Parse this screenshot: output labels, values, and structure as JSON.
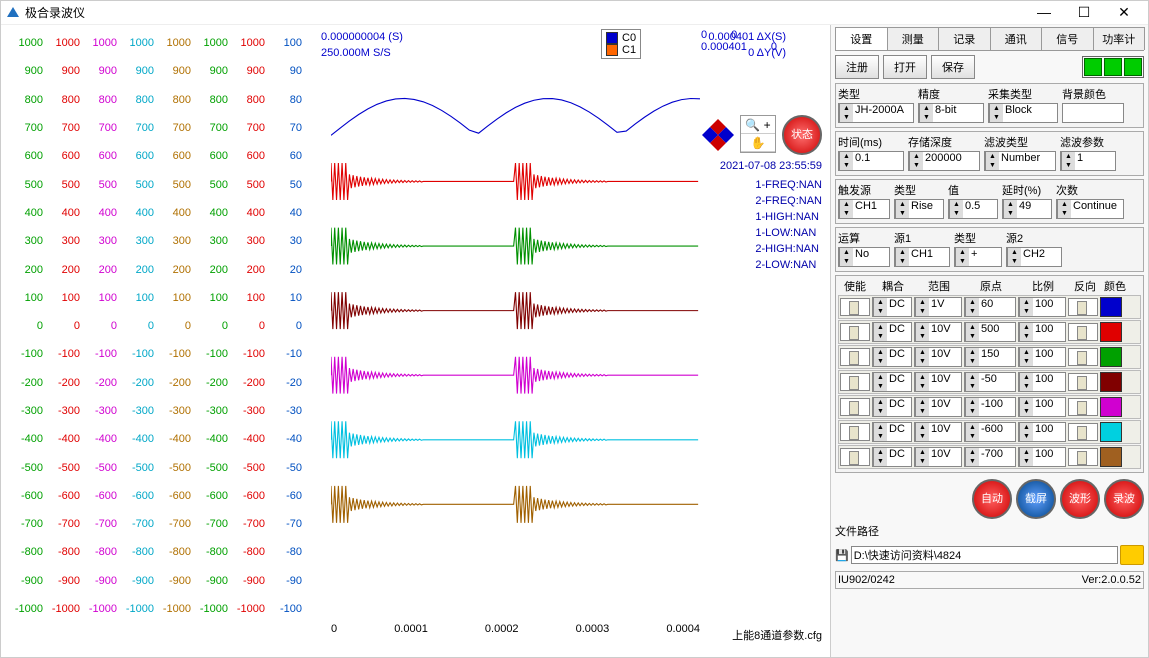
{
  "window": {
    "title": "极合录波仪",
    "min": "—",
    "max": "☐",
    "close": "✕"
  },
  "scale": {
    "columns": [
      "#00a000",
      "#e00000",
      "#d000d0",
      "#00a7c7",
      "#b07000",
      "#00a000",
      "#e00000",
      "#0050c0"
    ],
    "rows": [
      [
        "1000",
        "1000",
        "1000",
        "1000",
        "1000",
        "1000",
        "1000",
        "100"
      ],
      [
        "900",
        "900",
        "900",
        "900",
        "900",
        "900",
        "900",
        "90"
      ],
      [
        "800",
        "800",
        "800",
        "800",
        "800",
        "800",
        "800",
        "80"
      ],
      [
        "700",
        "700",
        "700",
        "700",
        "700",
        "700",
        "700",
        "70"
      ],
      [
        "600",
        "600",
        "600",
        "600",
        "600",
        "600",
        "600",
        "60"
      ],
      [
        "500",
        "500",
        "500",
        "500",
        "500",
        "500",
        "500",
        "50"
      ],
      [
        "400",
        "400",
        "400",
        "400",
        "400",
        "400",
        "400",
        "40"
      ],
      [
        "300",
        "300",
        "300",
        "300",
        "300",
        "300",
        "300",
        "30"
      ],
      [
        "200",
        "200",
        "200",
        "200",
        "200",
        "200",
        "200",
        "20"
      ],
      [
        "100",
        "100",
        "100",
        "100",
        "100",
        "100",
        "100",
        "10"
      ],
      [
        "0",
        "0",
        "0",
        "0",
        "0",
        "0",
        "0",
        "0"
      ],
      [
        "-100",
        "-100",
        "-100",
        "-100",
        "-100",
        "-100",
        "-100",
        "-10"
      ],
      [
        "-200",
        "-200",
        "-200",
        "-200",
        "-200",
        "-200",
        "-200",
        "-20"
      ],
      [
        "-300",
        "-300",
        "-300",
        "-300",
        "-300",
        "-300",
        "-300",
        "-30"
      ],
      [
        "-400",
        "-400",
        "-400",
        "-400",
        "-400",
        "-400",
        "-400",
        "-40"
      ],
      [
        "-500",
        "-500",
        "-500",
        "-500",
        "-500",
        "-500",
        "-500",
        "-50"
      ],
      [
        "-600",
        "-600",
        "-600",
        "-600",
        "-600",
        "-600",
        "-600",
        "-60"
      ],
      [
        "-700",
        "-700",
        "-700",
        "-700",
        "-700",
        "-700",
        "-700",
        "-70"
      ],
      [
        "-800",
        "-800",
        "-800",
        "-800",
        "-800",
        "-800",
        "-800",
        "-80"
      ],
      [
        "-900",
        "-900",
        "-900",
        "-900",
        "-900",
        "-900",
        "-900",
        "-90"
      ],
      [
        "-1000",
        "-1000",
        "-1000",
        "-1000",
        "-1000",
        "-1000",
        "-1000",
        "-100"
      ]
    ]
  },
  "chart": {
    "dt_label": "0.000000004  (S)",
    "dx": "0.000401  ΔX(S)",
    "rate": "250.000M  S/S",
    "dy": "0  ΔY(V)",
    "legend": [
      {
        "name": "C0",
        "color": "#0000cc"
      },
      {
        "name": "C1",
        "color": "#ff6600"
      }
    ],
    "cursors": {
      "c0x": "0",
      "c0y": "0",
      "c1x": "0.000401",
      "c1y": "0"
    },
    "timestamp": "2021-07-08 23:55:59",
    "meas": [
      "1-FREQ:NAN",
      "2-FREQ:NAN",
      "1-HIGH:NAN",
      "1-LOW:NAN",
      "2-HIGH:NAN",
      "2-LOW:NAN"
    ],
    "xticks": [
      "0",
      "0.0001",
      "0.0002",
      "0.0003",
      "0.0004"
    ],
    "cfg": "上能8通道参数.cfg",
    "zoom": {
      "in": "🔍 +",
      "pan": "✋"
    },
    "status": "状态",
    "wave_colors": [
      "#0000cc",
      "#e00000",
      "#009000",
      "#800000",
      "#d000d0",
      "#00c0e0",
      "#a06000"
    ]
  },
  "right": {
    "tabs": [
      "设置",
      "测量",
      "记录",
      "通讯",
      "信号",
      "功率计"
    ],
    "active_tab": 0,
    "buttons": {
      "register": "注册",
      "open": "打开",
      "save": "保存"
    },
    "labels": {
      "type": "类型",
      "precision": "精度",
      "sample_type": "采集类型",
      "bg": "背景颜色",
      "time": "时间(ms)",
      "depth": "存储深度",
      "filter_type": "滤波类型",
      "filter_param": "滤波参数",
      "trig_src": "触发源",
      "trig_type": "类型",
      "value": "值",
      "delay": "延时(%)",
      "count": "次数",
      "op": "运算",
      "src1": "源1",
      "mtype": "类型",
      "src2": "源2",
      "enable": "使能",
      "coupling": "耦合",
      "range": "范围",
      "origin": "原点",
      "ratio": "比例",
      "invert": "反向",
      "color": "颜色",
      "file": "文件路径"
    },
    "values": {
      "type": "JH-2000A",
      "precision": "8-bit",
      "sample_type": "Block",
      "bg": "",
      "time": "0.1",
      "depth": "200000",
      "filter_type": "Number",
      "filter_param": "1",
      "trig_src": "CH1",
      "trig_type": "Rise",
      "value": "0.5",
      "delay": "49",
      "count": "Continue",
      "op": "No",
      "src1": "CH1",
      "mtype": "+",
      "src2": "CH2",
      "path": "D:\\快速访问资料\\4824",
      "footer_id": "IU902/0242",
      "version": "Ver:2.0.0.52"
    },
    "channels": [
      {
        "cp": "DC",
        "rng": "1V",
        "org": "60",
        "ratio": "100",
        "color": "#0000cc"
      },
      {
        "cp": "DC",
        "rng": "10V",
        "org": "500",
        "ratio": "100",
        "color": "#e00000"
      },
      {
        "cp": "DC",
        "rng": "10V",
        "org": "150",
        "ratio": "100",
        "color": "#00a000"
      },
      {
        "cp": "DC",
        "rng": "10V",
        "org": "-50",
        "ratio": "100",
        "color": "#800000"
      },
      {
        "cp": "DC",
        "rng": "10V",
        "org": "-100",
        "ratio": "100",
        "color": "#d000d0"
      },
      {
        "cp": "DC",
        "rng": "10V",
        "org": "-600",
        "ratio": "100",
        "color": "#00d0e0"
      },
      {
        "cp": "DC",
        "rng": "10V",
        "org": "-700",
        "ratio": "100",
        "color": "#a06020"
      }
    ],
    "round": {
      "auto": "自动",
      "screenshot": "截屏",
      "wave": "波形",
      "record": "录波"
    }
  }
}
